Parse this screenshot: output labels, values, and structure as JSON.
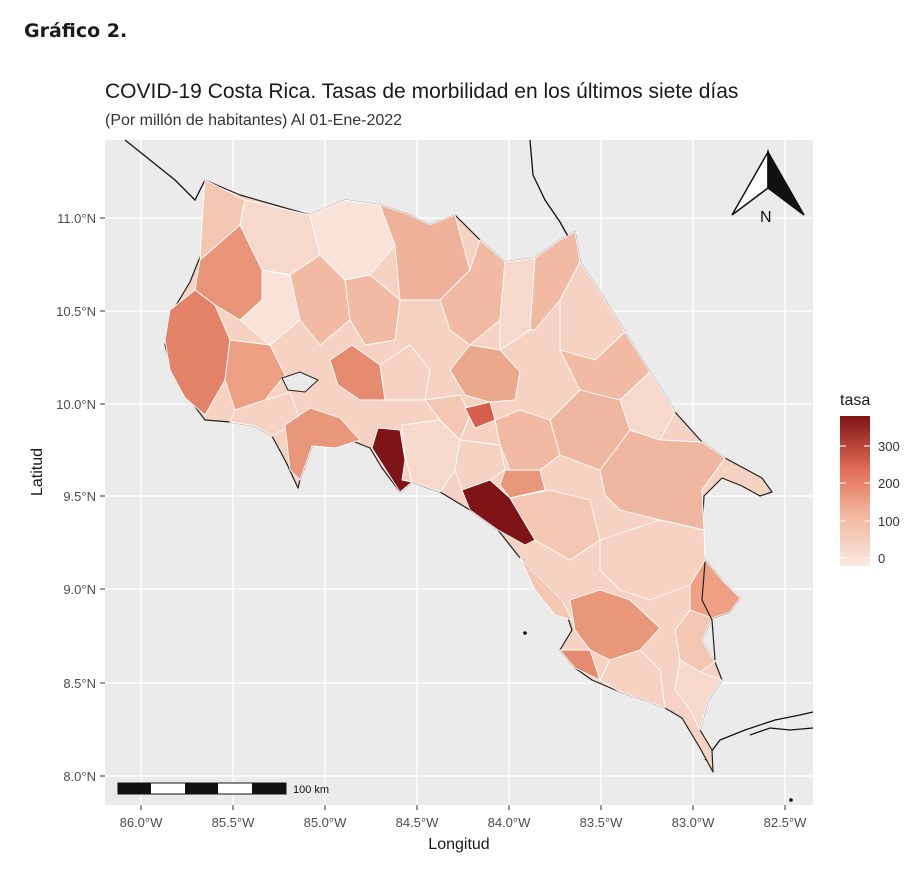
{
  "figure_label": "Gráfico 2.",
  "title": "COVID-19 Costa Rica. Tasas de morbilidad en los últimos siete días",
  "subtitle": "(Por millón de habitantes) Al 01-Ene-2022",
  "axes": {
    "xlabel": "Longitud",
    "ylabel": "Latitud",
    "x_ticks": [
      "86.0°W",
      "85.5°W",
      "85.0°W",
      "84.5°W",
      "84.0°W",
      "83.5°W",
      "83.0°W",
      "82.5°W"
    ],
    "y_ticks": [
      "11.0°N",
      "10.5°N",
      "10.0°N",
      "9.5°N",
      "9.0°N",
      "8.5°N",
      "8.0°N"
    ],
    "xlim": [
      -86.2,
      -82.3
    ],
    "ylim": [
      7.9,
      11.4
    ]
  },
  "legend": {
    "title": "tasa",
    "labels": [
      "300",
      "200",
      "100",
      "0"
    ],
    "color_low": "#fbe9e1",
    "color_high": "#7f1416"
  },
  "north_arrow": {
    "label": "N"
  },
  "scale_bar": {
    "label": "100 km"
  },
  "colors": {
    "panel_bg": "#ebebeb",
    "grid": "#ffffff",
    "land_low": "#f8dccf",
    "land_mid": "#eba88d",
    "land_high": "#d6604d",
    "land_max": "#7f1416"
  }
}
